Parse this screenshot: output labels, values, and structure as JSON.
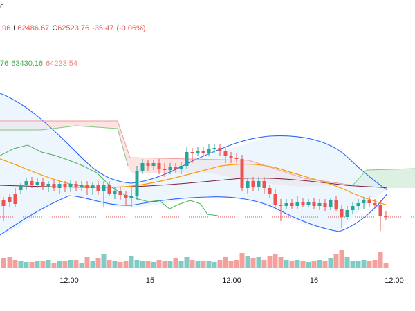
{
  "header": {
    "fragment": "c"
  },
  "ohlc": {
    "open_partial": ".96",
    "low_label": "L",
    "low": "62486.67",
    "close_label": "C",
    "close": "62523.76",
    "change": "-35.47",
    "change_pct": "(-0.06%)"
  },
  "indicators": {
    "first_partial": "76",
    "second": "63430.16",
    "third": "64233.54"
  },
  "x_axis": {
    "labels": [
      "12:00",
      "15",
      "12:00",
      "16",
      "12:00"
    ]
  },
  "colors": {
    "up": "#26a69a",
    "down": "#ef5350",
    "bollinger": "#2962ff",
    "ma": "#ff9800",
    "cloud_red": "#f8d7d5",
    "cloud_green": "#d6eedc",
    "price_line": "#ef5350",
    "volume_up": "#80cbc4",
    "volume_down": "#f4a19d"
  },
  "chart_data": {
    "type": "candlestick",
    "last_price": 62523.76,
    "x_ticks": [
      "12:00",
      "15",
      "12:00",
      "16",
      "12:00"
    ],
    "series": [
      {
        "name": "",
        "kind": "bollinger"
      },
      {
        "name": "",
        "kind": "ichimoku"
      },
      {
        "name": "",
        "kind": "moving-average"
      },
      {
        "name": "",
        "kind": "volume"
      }
    ]
  }
}
